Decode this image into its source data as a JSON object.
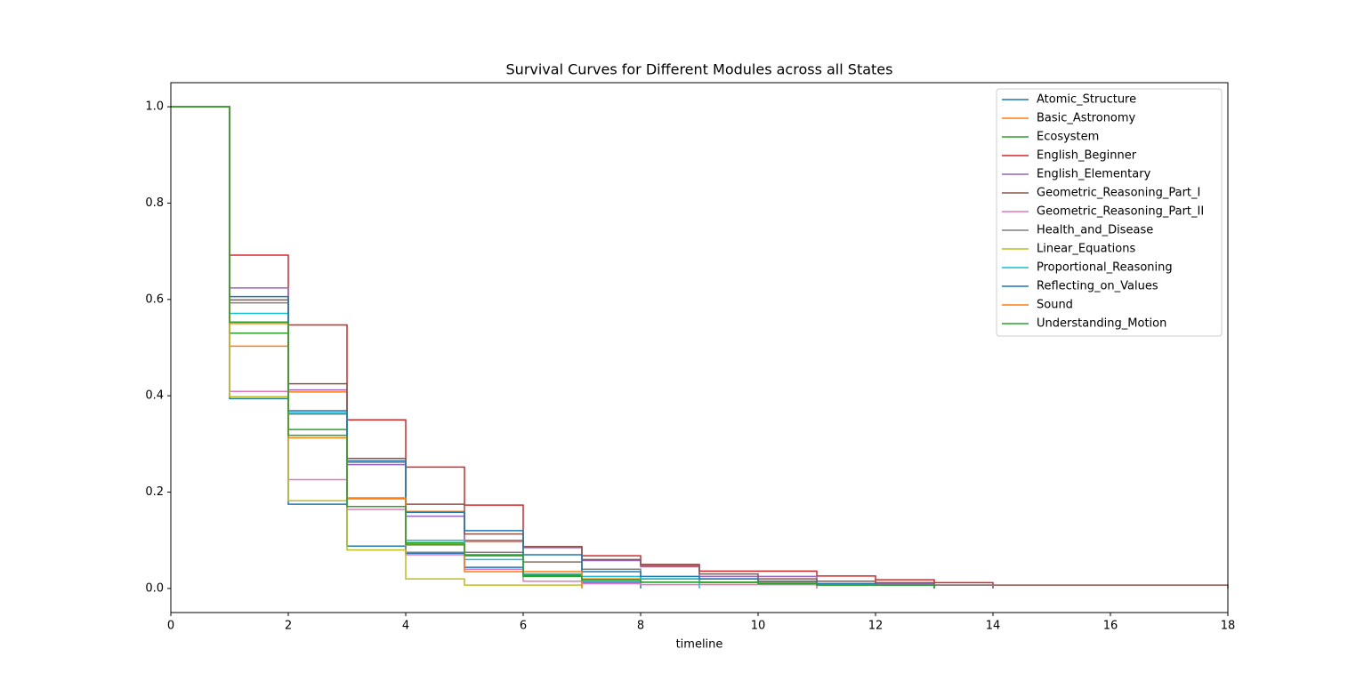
{
  "chart_data": {
    "type": "step",
    "title": "Survival Curves for Different Modules across all States",
    "xlabel": "timeline",
    "x": [
      0,
      1,
      2,
      3,
      4,
      5,
      6,
      7,
      8,
      9,
      10,
      11,
      12,
      13,
      14,
      15,
      16,
      17,
      18
    ],
    "xlim": [
      0,
      18
    ],
    "xticks": [
      0,
      2,
      4,
      6,
      8,
      10,
      12,
      14,
      16,
      18
    ],
    "ylim": [
      -0.05,
      1.05
    ],
    "yticks": [
      {
        "value": 0,
        "label": "0.0"
      },
      {
        "value": 0.2,
        "label": "0.2"
      },
      {
        "value": 0.4,
        "label": "0.4"
      },
      {
        "value": 0.6,
        "label": "0.6"
      },
      {
        "value": 0.8,
        "label": "0.8"
      },
      {
        "value": 1,
        "label": "1.0"
      }
    ],
    "legend": "upper right",
    "series": [
      {
        "name": "Atomic_Structure",
        "color": "#1f77b4",
        "values": [
          1,
          0.394,
          0.175,
          0.088,
          0.073,
          0.044,
          0.026,
          0.013,
          0,
          null,
          null,
          null,
          null,
          null,
          null,
          null,
          null,
          null,
          null
        ]
      },
      {
        "name": "Basic_Astronomy",
        "color": "#ff7f0e",
        "values": [
          1,
          0.503,
          0.408,
          0.186,
          0.16,
          0.097,
          0.055,
          0.02,
          0.02,
          0.012,
          0.012,
          0,
          null,
          null,
          null,
          null,
          null,
          null,
          null
        ]
      },
      {
        "name": "Ecosystem",
        "color": "#2ca02c",
        "values": [
          1,
          0.53,
          0.33,
          0.17,
          0.095,
          0.068,
          0.028,
          0.018,
          0.013,
          0.013,
          0.01,
          0.007,
          0.007,
          0,
          null,
          null,
          null,
          null,
          null
        ]
      },
      {
        "name": "English_Beginner",
        "color": "#d62728",
        "values": [
          1,
          0.692,
          0.547,
          0.35,
          0.252,
          0.173,
          0.085,
          0.068,
          0.048,
          0.036,
          0.036,
          0.026,
          0.018,
          0.012,
          0,
          null,
          null,
          null,
          null
        ]
      },
      {
        "name": "English_Elementary",
        "color": "#9467bd",
        "values": [
          1,
          0.624,
          0.412,
          0.257,
          0.15,
          0.1,
          0.085,
          0.058,
          0.045,
          0.025,
          0.025,
          0.015,
          0.01,
          0.007,
          0,
          null,
          null,
          null,
          null
        ]
      },
      {
        "name": "Geometric_Reasoning_Part_I",
        "color": "#8c564b",
        "values": [
          1,
          0.599,
          0.425,
          0.27,
          0.175,
          0.113,
          0.087,
          0.06,
          0.05,
          0.03,
          0.02,
          0.015,
          0.012,
          0.007,
          0.007,
          0.007,
          0.007,
          0.007,
          0
        ]
      },
      {
        "name": "Geometric_Reasoning_Part_II",
        "color": "#e377c2",
        "values": [
          1,
          0.409,
          0.226,
          0.164,
          0.07,
          0.04,
          0.015,
          0.01,
          0.008,
          0.008,
          0.008,
          0,
          null,
          null,
          null,
          null,
          null,
          null,
          null
        ]
      },
      {
        "name": "Health_and_Disease",
        "color": "#7f7f7f",
        "values": [
          1,
          0.593,
          0.362,
          0.262,
          0.075,
          0.075,
          0.055,
          0.04,
          0.02,
          0.02,
          0.015,
          0.01,
          0.007,
          0.007,
          0,
          null,
          null,
          null,
          null
        ]
      },
      {
        "name": "Linear_Equations",
        "color": "#bcbd22",
        "values": [
          1,
          0.398,
          0.182,
          0.08,
          0.02,
          0.007,
          0.007,
          0,
          null,
          null,
          null,
          null,
          null,
          null,
          null,
          null,
          null,
          null,
          null
        ]
      },
      {
        "name": "Proportional_Reasoning",
        "color": "#17becf",
        "values": [
          1,
          0.571,
          0.365,
          0.17,
          0.1,
          0.06,
          0.03,
          0.025,
          0.02,
          0,
          null,
          null,
          null,
          null,
          null,
          null,
          null,
          null,
          null
        ]
      },
      {
        "name": "Reflecting_on_Values",
        "color": "#1f77b4",
        "values": [
          1,
          0.606,
          0.369,
          0.265,
          0.158,
          0.12,
          0.07,
          0.035,
          0.025,
          0.02,
          0.015,
          0.01,
          0.007,
          0,
          null,
          null,
          null,
          null,
          null
        ]
      },
      {
        "name": "Sound",
        "color": "#ff7f0e",
        "values": [
          1,
          0.55,
          0.313,
          0.188,
          0.09,
          0.035,
          0.035,
          0,
          null,
          null,
          null,
          null,
          null,
          null,
          null,
          null,
          null,
          null,
          null
        ]
      },
      {
        "name": "Understanding_Motion",
        "color": "#2ca02c",
        "values": [
          1,
          0.553,
          0.318,
          0.17,
          0.092,
          0.07,
          0.025,
          0.017,
          0.013,
          0.013,
          0.01,
          0.007,
          0.007,
          0,
          null,
          null,
          null,
          null,
          null
        ]
      }
    ]
  }
}
